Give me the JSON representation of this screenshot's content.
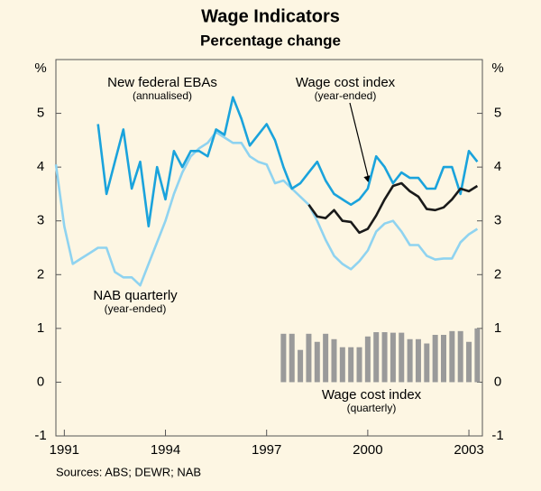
{
  "chart_data": {
    "type": "line",
    "title": "Wage Indicators",
    "subtitle": "Percentage change",
    "y_unit": "%",
    "sources": "Sources: ABS; DEWR; NAB",
    "xlim": [
      1990.75,
      2003.4
    ],
    "xticks": [
      1991,
      1994,
      1997,
      2000,
      2003
    ],
    "ylim": [
      -1,
      6
    ],
    "yticks": [
      -1,
      0,
      1,
      2,
      3,
      4,
      5
    ],
    "annotations": [
      {
        "text": "New federal EBAs",
        "subtext": "(annualised)"
      },
      {
        "text": "Wage cost index",
        "subtext": "(year-ended)"
      },
      {
        "text": "NAB quarterly",
        "subtext": "(year-ended)"
      },
      {
        "text": "Wage cost index",
        "subtext": "(quarterly)"
      }
    ],
    "series": [
      {
        "name": "NAB quarterly",
        "type": "line",
        "color": "#8fd3f0",
        "x": [
          1990.75,
          1991.0,
          1991.25,
          1991.5,
          1991.75,
          1992.0,
          1992.25,
          1992.5,
          1992.75,
          1993.0,
          1993.25,
          1993.5,
          1993.75,
          1994.0,
          1994.25,
          1994.5,
          1994.75,
          1995.0,
          1995.25,
          1995.5,
          1995.75,
          1996.0,
          1996.25,
          1996.5,
          1996.75,
          1997.0,
          1997.25,
          1997.5,
          1997.75,
          1998.0,
          1998.25,
          1998.5,
          1998.75,
          1999.0,
          1999.25,
          1999.5,
          1999.75,
          2000.0,
          2000.25,
          2000.5,
          2000.75,
          2001.0,
          2001.25,
          2001.5,
          2001.75,
          2002.0,
          2002.25,
          2002.5,
          2002.75,
          2003.0,
          2003.25
        ],
        "values": [
          4.05,
          2.9,
          2.2,
          2.3,
          2.4,
          2.5,
          2.5,
          2.05,
          1.95,
          1.95,
          1.8,
          2.2,
          2.6,
          3.0,
          3.5,
          3.9,
          4.2,
          4.35,
          4.45,
          4.65,
          4.55,
          4.45,
          4.45,
          4.2,
          4.1,
          4.05,
          3.7,
          3.75,
          3.6,
          3.45,
          3.3,
          3.0,
          2.65,
          2.35,
          2.2,
          2.1,
          2.25,
          2.45,
          2.8,
          2.95,
          3.0,
          2.8,
          2.55,
          2.55,
          2.35,
          2.28,
          2.3,
          2.3,
          2.6,
          2.75,
          2.85
        ]
      },
      {
        "name": "New federal EBAs",
        "type": "line",
        "color": "#1aa3dc",
        "x": [
          1992.0,
          1992.25,
          1992.5,
          1992.75,
          1993.0,
          1993.25,
          1993.5,
          1993.75,
          1994.0,
          1994.25,
          1994.5,
          1994.75,
          1995.0,
          1995.25,
          1995.5,
          1995.75,
          1996.0,
          1996.25,
          1996.5,
          1996.75,
          1997.0,
          1997.25,
          1997.5,
          1997.75,
          1998.0,
          1998.25,
          1998.5,
          1998.75,
          1999.0,
          1999.25,
          1999.5,
          1999.75,
          2000.0,
          2000.25,
          2000.5,
          2000.75,
          2001.0,
          2001.25,
          2001.5,
          2001.75,
          2002.0,
          2002.25,
          2002.5,
          2002.75,
          2003.0,
          2003.25
        ],
        "values": [
          4.8,
          3.5,
          4.1,
          4.7,
          3.6,
          4.1,
          2.9,
          4.0,
          3.4,
          4.3,
          4.0,
          4.3,
          4.3,
          4.2,
          4.7,
          4.6,
          5.3,
          4.9,
          4.4,
          4.6,
          4.8,
          4.5,
          4.0,
          3.6,
          3.7,
          3.9,
          4.1,
          3.75,
          3.5,
          3.4,
          3.3,
          3.4,
          3.6,
          4.2,
          4.0,
          3.7,
          3.9,
          3.8,
          3.8,
          3.6,
          3.6,
          4.0,
          4.0,
          3.5,
          4.3,
          4.1
        ]
      },
      {
        "name": "Wage cost index (year-ended)",
        "type": "line",
        "color": "#1a1a1a",
        "x": [
          1998.25,
          1998.5,
          1998.75,
          1999.0,
          1999.25,
          1999.5,
          1999.75,
          2000.0,
          2000.25,
          2000.5,
          2000.75,
          2001.0,
          2001.25,
          2001.5,
          2001.75,
          2002.0,
          2002.25,
          2002.5,
          2002.75,
          2003.0,
          2003.25
        ],
        "values": [
          3.3,
          3.08,
          3.05,
          3.2,
          3.0,
          2.98,
          2.78,
          2.85,
          3.1,
          3.4,
          3.65,
          3.7,
          3.55,
          3.45,
          3.22,
          3.2,
          3.25,
          3.4,
          3.6,
          3.55,
          3.65
        ]
      },
      {
        "name": "Wage cost index (quarterly)",
        "type": "bar",
        "color": "#9a9a9a",
        "x": [
          1997.5,
          1997.75,
          1998.0,
          1998.25,
          1998.5,
          1998.75,
          1999.0,
          1999.25,
          1999.5,
          1999.75,
          2000.0,
          2000.25,
          2000.5,
          2000.75,
          2001.0,
          2001.25,
          2001.5,
          2001.75,
          2002.0,
          2002.25,
          2002.5,
          2002.75,
          2003.0,
          2003.25
        ],
        "values": [
          0.9,
          0.9,
          0.6,
          0.9,
          0.75,
          0.9,
          0.8,
          0.65,
          0.65,
          0.65,
          0.85,
          0.93,
          0.93,
          0.92,
          0.92,
          0.8,
          0.8,
          0.72,
          0.88,
          0.88,
          0.95,
          0.95,
          0.75,
          1.0
        ]
      }
    ]
  }
}
